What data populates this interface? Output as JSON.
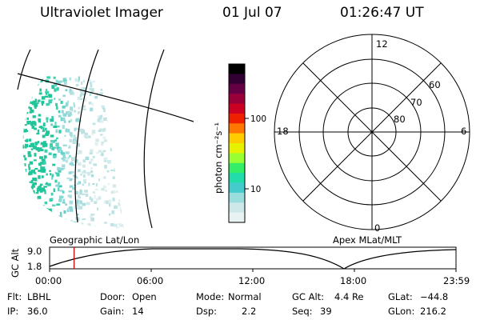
{
  "header": {
    "title": "Ultraviolet Imager",
    "date": "01 Jul 07",
    "time": "01:26:47 UT"
  },
  "colorbar": {
    "unit_label": "photon cm⁻²s⁻¹",
    "ticks": [
      "100",
      "10"
    ],
    "colors": [
      "#000000",
      "#330033",
      "#660044",
      "#99003a",
      "#cc0022",
      "#ee2000",
      "#ff7700",
      "#ffcc00",
      "#e6f200",
      "#99ff33",
      "#33ee66",
      "#22ddaa",
      "#44cccc",
      "#99dddd",
      "#cce8e8",
      "#e8f2f2"
    ]
  },
  "polar": {
    "mlt_labels": {
      "top": "12",
      "left": "18",
      "right": "6",
      "bottom": "0"
    },
    "lat_labels": [
      "60",
      "70",
      "80"
    ]
  },
  "timeline": {
    "ylabel": "GC Alt",
    "ymax": "9.0",
    "ymin": "1.8",
    "left_title": "Geographic Lat/Lon",
    "right_title": "Apex MLat/MLT",
    "xticks": [
      "00:00",
      "06:00",
      "12:00",
      "18:00",
      "23:59"
    ],
    "current_time_hours": 1.447,
    "marker_color": "#cc0000"
  },
  "info": {
    "flt_label": "Flt:",
    "flt_value": "LBHL",
    "ip_label": "IP:",
    "ip_value": "36.0",
    "door_label": "Door:",
    "door_value": "Open",
    "gain_label": "Gain:",
    "gain_value": "14",
    "mode_label": "Mode:",
    "mode_value": "Normal",
    "dsp_label": "Dsp:",
    "dsp_value": "2.2",
    "gcalt_label": "GC Alt:",
    "gcalt_value": "4.4 Re",
    "seq_label": "Seq:",
    "seq_value": "39",
    "glat_label": "GLat:",
    "glat_value": "−44.8",
    "glon_label": "GLon:",
    "glon_value": "216.2"
  }
}
